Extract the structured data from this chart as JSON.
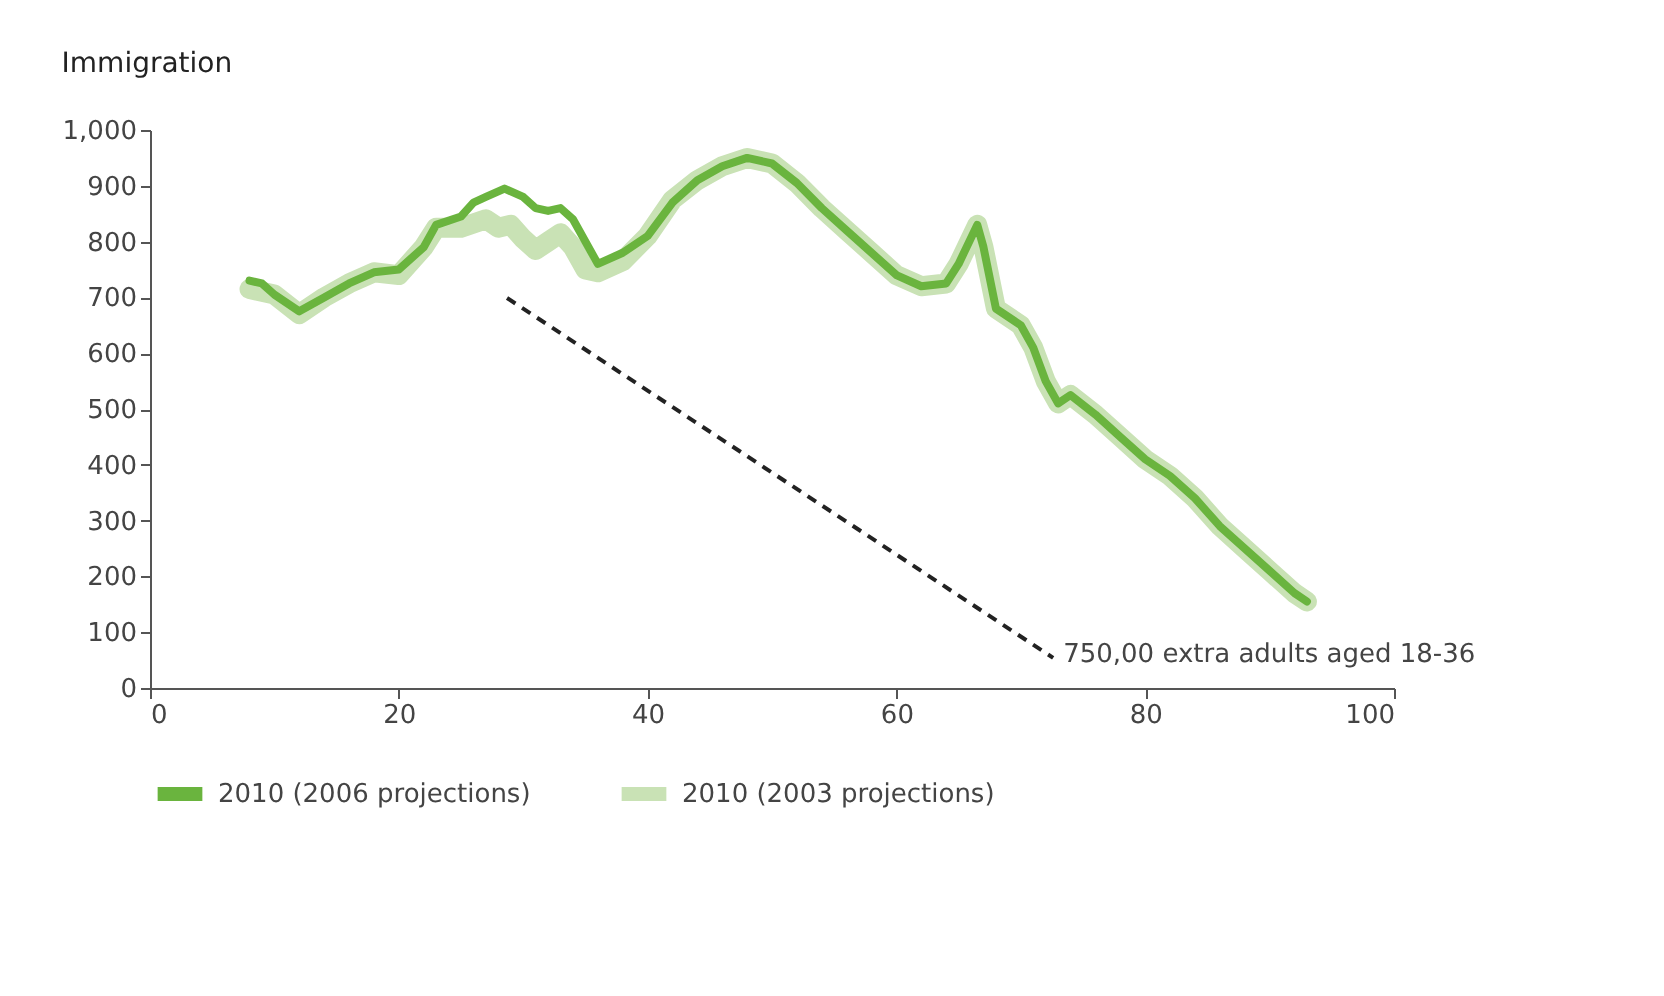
{
  "chart_data": {
    "type": "line",
    "title": "Immigration",
    "xlim": [
      0,
      100
    ],
    "xticks": [
      0,
      20,
      40,
      60,
      80,
      100
    ],
    "ylim": [
      0,
      1000
    ],
    "yticks": [
      0,
      100,
      200,
      300,
      400,
      500,
      600,
      700,
      800,
      900,
      {
        "value": 1000,
        "label": "1,000"
      }
    ],
    "grid": false,
    "legend": "bottom",
    "line_style": "solid",
    "marker": "none",
    "series": [
      {
        "name": "2010 (2006 projections)",
        "color": "#6ab43e",
        "x": [
          8,
          9,
          10,
          12,
          14,
          16,
          18,
          20,
          22,
          23,
          25,
          26,
          27,
          28.5,
          30,
          31,
          32,
          33,
          34,
          36,
          38,
          40,
          42,
          44,
          46,
          48,
          50,
          52,
          54,
          56,
          58,
          60,
          62,
          64,
          65,
          66.5,
          67,
          68,
          70,
          71,
          72,
          73,
          74,
          76,
          78,
          80,
          82,
          84,
          86,
          88,
          90,
          92,
          93
        ],
        "values": [
          730,
          725,
          705,
          675,
          700,
          725,
          745,
          750,
          790,
          830,
          845,
          870,
          880,
          895,
          880,
          860,
          855,
          860,
          840,
          760,
          780,
          810,
          870,
          910,
          935,
          950,
          940,
          905,
          860,
          820,
          780,
          740,
          720,
          725,
          760,
          830,
          790,
          680,
          650,
          610,
          550,
          510,
          525,
          490,
          450,
          410,
          380,
          340,
          290,
          250,
          210,
          170,
          155
        ]
      },
      {
        "name": "2010 (2003 projections)",
        "color": "#c9e2b5",
        "x": [
          8,
          10,
          12,
          14,
          16,
          18,
          20,
          22,
          23,
          25,
          27,
          28,
          29,
          30,
          31,
          32,
          33,
          34,
          35,
          36,
          38,
          40,
          42,
          44,
          46,
          48,
          50,
          52,
          54,
          56,
          58,
          60,
          62,
          64,
          65,
          66.5,
          67,
          68,
          70,
          71,
          72,
          73,
          74,
          76,
          78,
          80,
          82,
          84,
          86,
          88,
          90,
          92,
          93
        ],
        "values": [
          715,
          705,
          670,
          700,
          725,
          745,
          740,
          790,
          825,
          825,
          840,
          825,
          830,
          805,
          785,
          800,
          815,
          790,
          750,
          745,
          765,
          810,
          875,
          910,
          935,
          950,
          940,
          905,
          860,
          820,
          780,
          740,
          720,
          725,
          760,
          830,
          790,
          680,
          650,
          610,
          550,
          510,
          525,
          490,
          450,
          410,
          380,
          340,
          290,
          250,
          210,
          170,
          155
        ]
      },
      {
        "type": "line",
        "line_style": "dashed",
        "color": "#222222",
        "x": [
          28.7,
          72.6
        ],
        "values": [
          699,
          54
        ]
      }
    ],
    "annotations": [
      {
        "text": "750,00 extra adults aged 18-36",
        "x": 72.6,
        "y": 54
      }
    ]
  }
}
